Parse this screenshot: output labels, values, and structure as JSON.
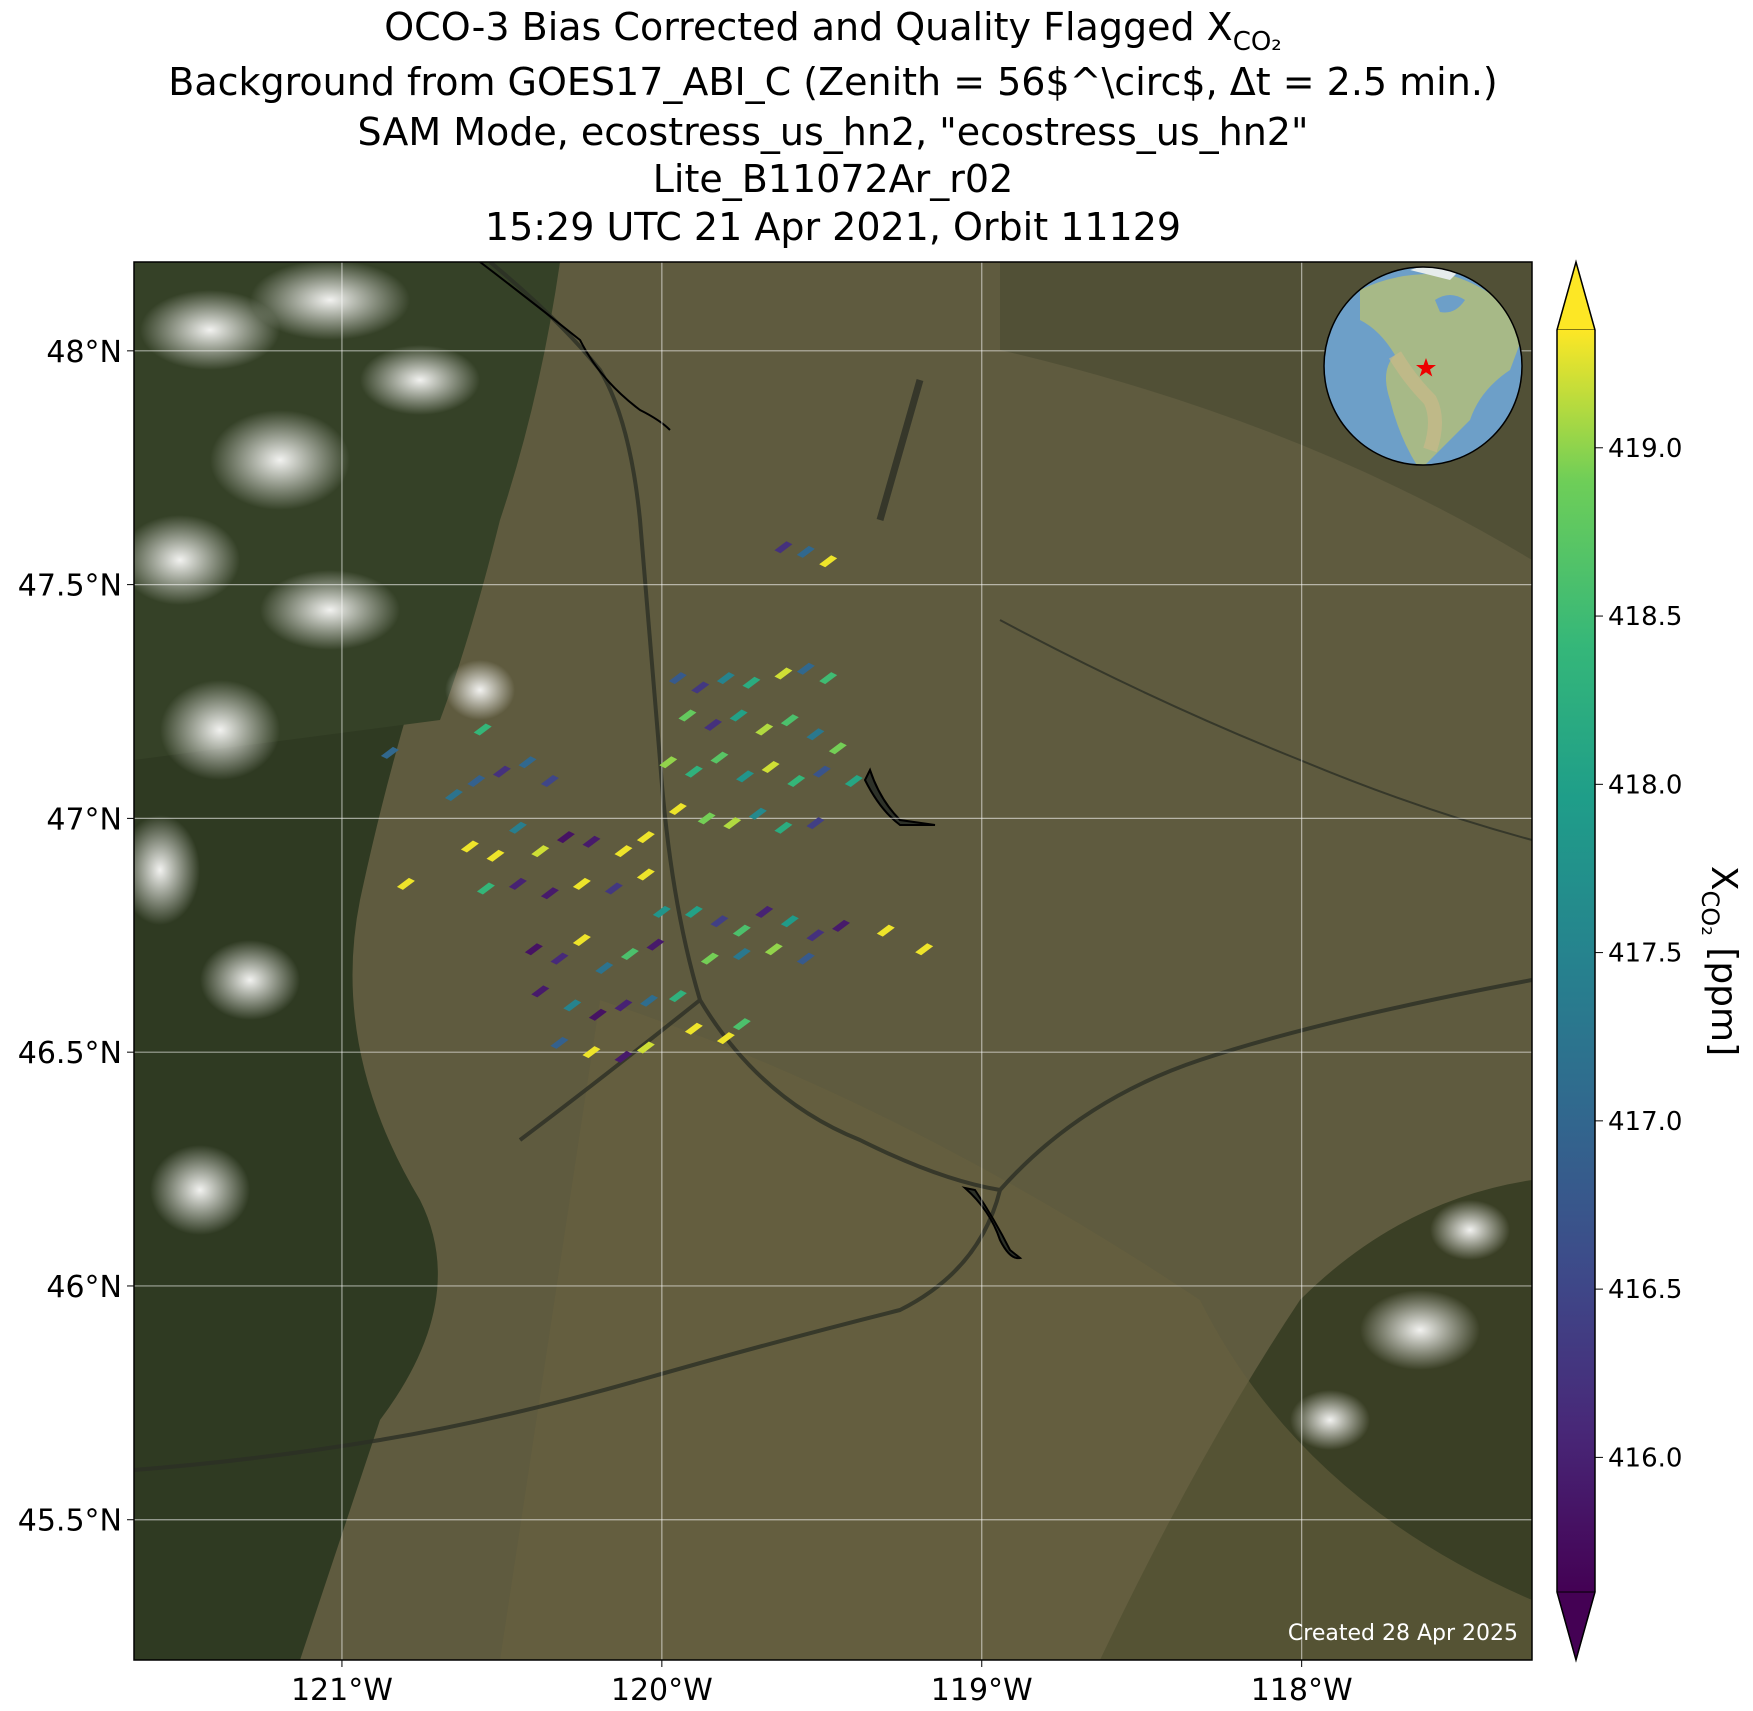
{
  "map_data": {
    "title_lines": [
      "OCO-3 Bias Corrected and Quality Flagged X",
      "Background from GOES17_ABI_C (Zenith = 56$^\\circ$, Δt =  2.5 min.)",
      "SAM Mode, ecostress_us_hn2, \"ecostress_us_hn2\"",
      "Lite_B11072Ar_r02",
      "15:29 UTC 21 Apr 2021, Orbit 11129"
    ],
    "title_subscript": "CO₂",
    "lon_range": [
      -121.65,
      -117.28
    ],
    "lat_range": [
      45.2,
      48.19
    ],
    "lon_ticks": [
      {
        "value": -121,
        "label": "121°W"
      },
      {
        "value": -120,
        "label": "120°W"
      },
      {
        "value": -119,
        "label": "119°W"
      },
      {
        "value": -118,
        "label": "118°W"
      }
    ],
    "lat_ticks": [
      {
        "value": 45.5,
        "label": "45.5°N"
      },
      {
        "value": 46,
        "label": "46°N"
      },
      {
        "value": 46.5,
        "label": "46.5°N"
      },
      {
        "value": 47,
        "label": "47°N"
      },
      {
        "value": 47.5,
        "label": "47.5°N"
      },
      {
        "value": 48,
        "label": "48°N"
      }
    ],
    "grid": true,
    "colorbar": {
      "range": [
        415.6,
        419.35
      ],
      "colormap": "viridis",
      "label": "X",
      "label_subscript": "CO₂",
      "label_units": " [ppm]",
      "ticks": [
        {
          "value": 416,
          "label": "416.0"
        },
        {
          "value": 416.5,
          "label": "416.5"
        },
        {
          "value": 417,
          "label": "417.0"
        },
        {
          "value": 417.5,
          "label": "417.5"
        },
        {
          "value": 418,
          "label": "418.0"
        },
        {
          "value": 418.5,
          "label": "418.5"
        },
        {
          "value": 419,
          "label": "419.0"
        }
      ]
    },
    "soundings": {
      "lon": [
        -119.95,
        -119.88,
        -119.8,
        -119.72,
        -119.62,
        -119.55,
        -119.48,
        -119.92,
        -119.84,
        -119.76,
        -119.68,
        -119.6,
        -119.52,
        -119.45,
        -119.98,
        -119.9,
        -119.82,
        -119.74,
        -119.66,
        -119.58,
        -119.5,
        -119.4,
        -119.95,
        -119.86,
        -119.78,
        -119.7,
        -119.62,
        -119.52,
        -120.65,
        -120.58,
        -120.5,
        -120.42,
        -120.35,
        -120.6,
        -120.52,
        -120.45,
        -120.38,
        -120.3,
        -120.22,
        -120.12,
        -120.05,
        -120.55,
        -120.45,
        -120.35,
        -120.25,
        -120.15,
        -120.05,
        -120.0,
        -120.4,
        -120.32,
        -120.25,
        -120.18,
        -120.1,
        -120.02,
        -120.38,
        -120.28,
        -120.2,
        -120.12,
        -120.04,
        -119.95,
        -120.32,
        -120.22,
        -120.12,
        -120.05,
        -119.9,
        -119.82,
        -119.75,
        -119.68,
        -119.6,
        -119.52,
        -119.44,
        -119.85,
        -119.75,
        -119.65,
        -119.55,
        -119.9,
        -119.8,
        -119.75,
        -119.62,
        -119.55,
        -119.48,
        -120.8,
        -119.3,
        -119.18,
        -120.85,
        -120.56
      ],
      "lat": [
        47.3,
        47.28,
        47.3,
        47.29,
        47.31,
        47.32,
        47.3,
        47.22,
        47.2,
        47.22,
        47.19,
        47.21,
        47.18,
        47.15,
        47.12,
        47.1,
        47.13,
        47.09,
        47.11,
        47.08,
        47.1,
        47.08,
        47.02,
        47.0,
        46.99,
        47.01,
        46.98,
        46.99,
        47.05,
        47.08,
        47.1,
        47.12,
        47.08,
        46.94,
        46.92,
        46.98,
        46.93,
        46.96,
        46.95,
        46.93,
        46.96,
        46.85,
        46.86,
        46.84,
        46.86,
        46.85,
        46.88,
        46.8,
        46.72,
        46.7,
        46.74,
        46.68,
        46.71,
        46.73,
        46.63,
        46.6,
        46.58,
        46.6,
        46.61,
        46.62,
        46.52,
        46.5,
        46.49,
        46.51,
        46.8,
        46.78,
        46.76,
        46.8,
        46.78,
        46.75,
        46.77,
        46.7,
        46.71,
        46.72,
        46.7,
        46.55,
        46.53,
        46.56,
        47.58,
        47.57,
        47.55,
        46.86,
        46.76,
        46.72,
        47.14,
        47.19
      ],
      "xco2": [
        416.8,
        416.3,
        417.5,
        418.2,
        419.2,
        417.0,
        418.5,
        418.8,
        416.2,
        418.0,
        419.1,
        418.6,
        417.3,
        418.9,
        419.0,
        418.3,
        418.7,
        417.8,
        419.2,
        418.4,
        416.7,
        418.1,
        419.3,
        418.9,
        419.1,
        417.6,
        418.2,
        416.4,
        417.2,
        416.9,
        416.2,
        417.0,
        416.5,
        419.3,
        419.3,
        417.4,
        419.2,
        415.8,
        415.9,
        419.3,
        419.3,
        418.4,
        416.0,
        415.9,
        419.3,
        416.3,
        419.3,
        417.8,
        415.8,
        416.1,
        419.3,
        417.2,
        418.6,
        415.9,
        415.9,
        417.5,
        415.8,
        416.0,
        417.1,
        418.3,
        416.9,
        419.3,
        415.9,
        419.2,
        418.0,
        416.4,
        418.6,
        416.0,
        417.9,
        416.2,
        415.9,
        418.9,
        417.3,
        419.0,
        416.8,
        419.3,
        419.3,
        418.6,
        416.2,
        417.0,
        419.3,
        419.3,
        419.3,
        419.3,
        417.0,
        418.4
      ]
    },
    "footer": "Created 28 Apr 2025"
  }
}
